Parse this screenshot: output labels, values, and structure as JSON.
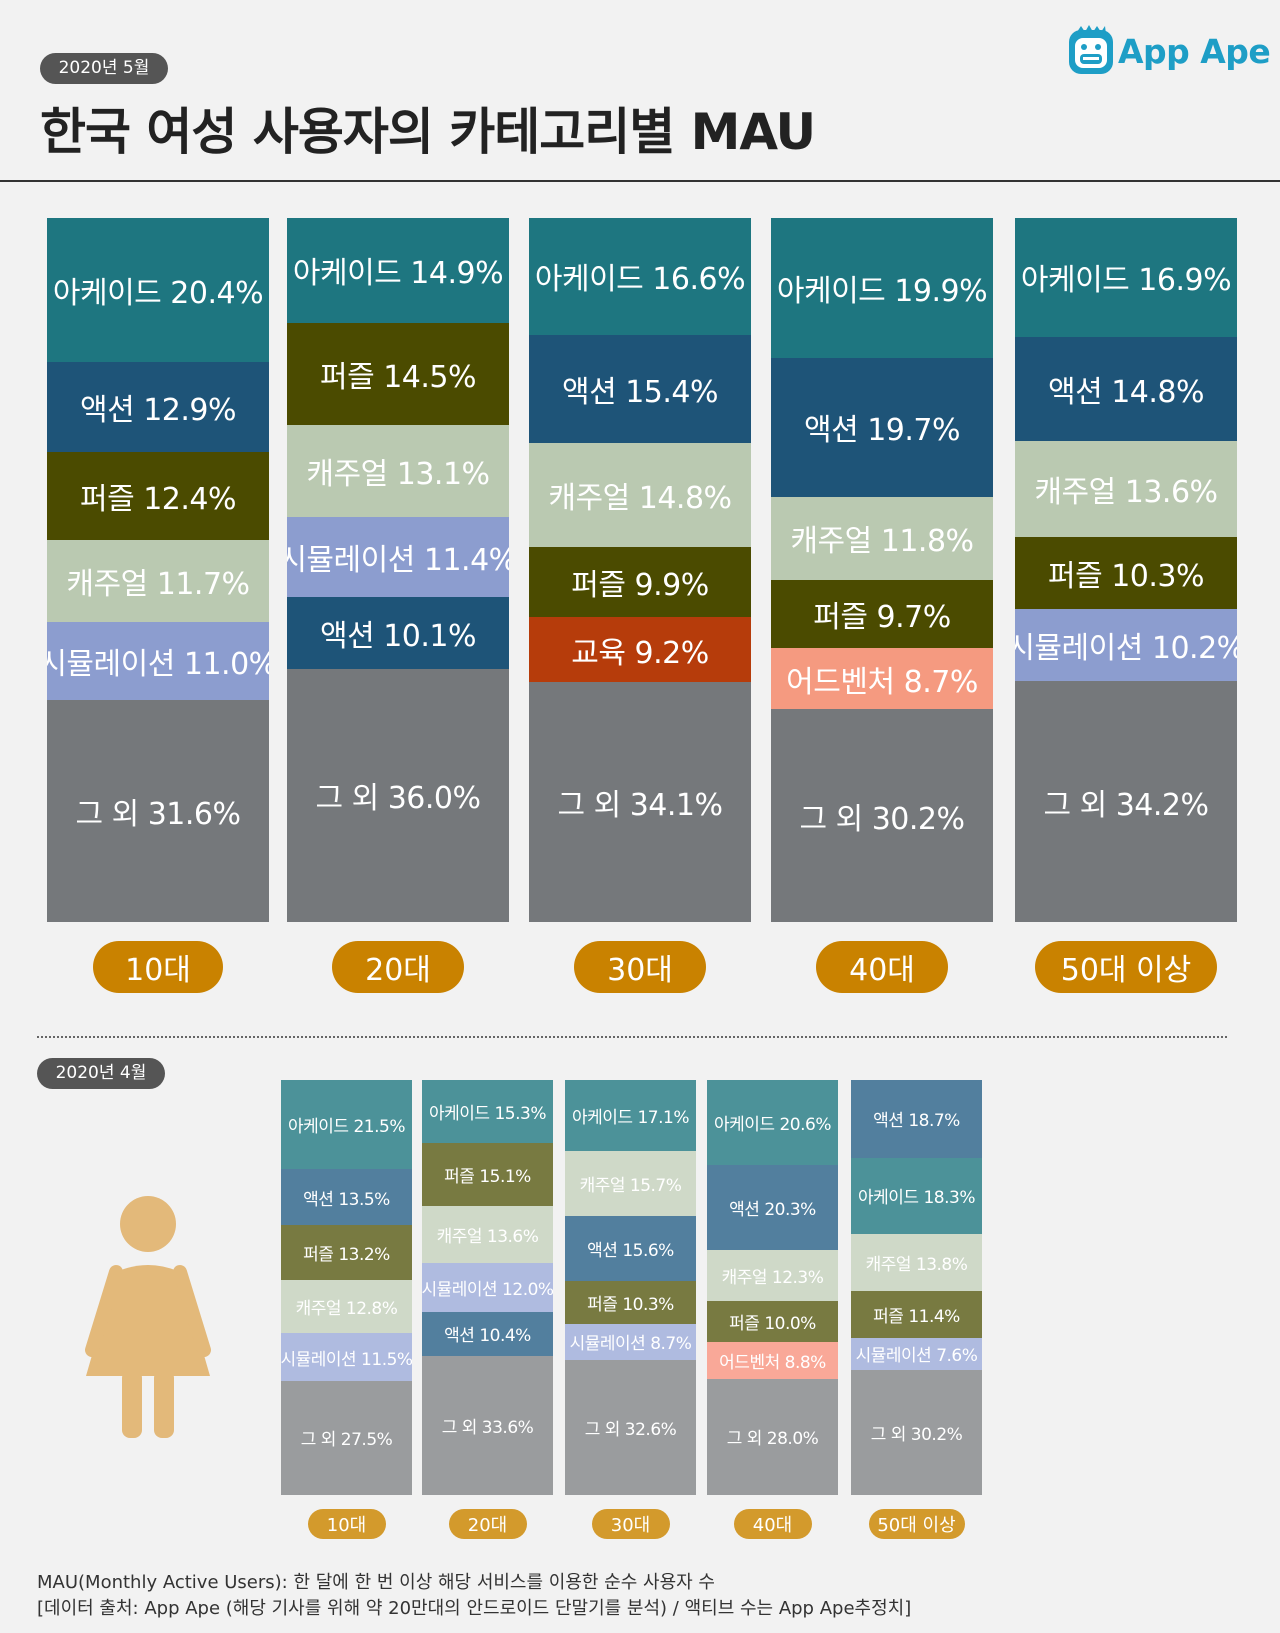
{
  "header": {
    "date_badge": "2020년 5월",
    "title": "한국 여성 사용자의 카테고리별 MAU",
    "logo_text": "App Ape"
  },
  "april": {
    "date_badge": "2020년 4월"
  },
  "colors": {
    "아케이드": "#1e7680",
    "액션": "#1e5478",
    "퍼즐": "#4b4b00",
    "캐주얼": "#bac9b1",
    "시뮬레이션": "#8c9dcf",
    "교육": "#b63c0b",
    "어드벤처": "#f59a80",
    "그 외": "#75787b",
    "age_pill": "#c98200"
  },
  "colors_april": {
    "아케이드": "#4c9299",
    "액션": "#527f9e",
    "퍼즐": "#787a41",
    "캐주얼": "#cfd9c8",
    "시뮬레이션": "#afbbe0",
    "어드벤처": "#f9a898",
    "그 외": "#9a9c9e",
    "age_pill": "#d39a2c"
  },
  "chart_data": [
    {
      "type": "bar",
      "stacked": true,
      "title": "한국 여성 사용자의 카테고리별 MAU",
      "period": "2020년 5월",
      "unit": "%",
      "categories": [
        "10대",
        "20대",
        "30대",
        "40대",
        "50대 이상"
      ],
      "columns": [
        {
          "category": "10대",
          "segments": [
            {
              "name": "아케이드",
              "value": 20.4,
              "label": "아케이드 20.4%"
            },
            {
              "name": "액션",
              "value": 12.9,
              "label": "액션 12.9%"
            },
            {
              "name": "퍼즐",
              "value": 12.4,
              "label": "퍼즐 12.4%"
            },
            {
              "name": "캐주얼",
              "value": 11.7,
              "label": "캐주얼 11.7%"
            },
            {
              "name": "시뮬레이션",
              "value": 11.0,
              "label": "시뮬레이션 11.0%"
            },
            {
              "name": "그 외",
              "value": 31.6,
              "label": "그 외 31.6%"
            }
          ]
        },
        {
          "category": "20대",
          "segments": [
            {
              "name": "아케이드",
              "value": 14.9,
              "label": "아케이드 14.9%"
            },
            {
              "name": "퍼즐",
              "value": 14.5,
              "label": "퍼즐 14.5%"
            },
            {
              "name": "캐주얼",
              "value": 13.1,
              "label": "캐주얼 13.1%"
            },
            {
              "name": "시뮬레이션",
              "value": 11.4,
              "label": "시뮬레이션 11.4%"
            },
            {
              "name": "액션",
              "value": 10.1,
              "label": "액션 10.1%"
            },
            {
              "name": "그 외",
              "value": 36.0,
              "label": "그 외 36.0%"
            }
          ]
        },
        {
          "category": "30대",
          "segments": [
            {
              "name": "아케이드",
              "value": 16.6,
              "label": "아케이드 16.6%"
            },
            {
              "name": "액션",
              "value": 15.4,
              "label": "액션 15.4%"
            },
            {
              "name": "캐주얼",
              "value": 14.8,
              "label": "캐주얼 14.8%"
            },
            {
              "name": "퍼즐",
              "value": 9.9,
              "label": "퍼즐 9.9%"
            },
            {
              "name": "교육",
              "value": 9.2,
              "label": "교육 9.2%"
            },
            {
              "name": "그 외",
              "value": 34.1,
              "label": "그 외 34.1%"
            }
          ]
        },
        {
          "category": "40대",
          "segments": [
            {
              "name": "아케이드",
              "value": 19.9,
              "label": "아케이드 19.9%"
            },
            {
              "name": "액션",
              "value": 19.7,
              "label": "액션 19.7%"
            },
            {
              "name": "캐주얼",
              "value": 11.8,
              "label": "캐주얼 11.8%"
            },
            {
              "name": "퍼즐",
              "value": 9.7,
              "label": "퍼즐 9.7%"
            },
            {
              "name": "어드벤처",
              "value": 8.7,
              "label": "어드벤처 8.7%"
            },
            {
              "name": "그 외",
              "value": 30.2,
              "label": "그 외 30.2%"
            }
          ]
        },
        {
          "category": "50대 이상",
          "segments": [
            {
              "name": "아케이드",
              "value": 16.9,
              "label": "아케이드 16.9%"
            },
            {
              "name": "액션",
              "value": 14.8,
              "label": "액션 14.8%"
            },
            {
              "name": "캐주얼",
              "value": 13.6,
              "label": "캐주얼 13.6%"
            },
            {
              "name": "퍼즐",
              "value": 10.3,
              "label": "퍼즐 10.3%"
            },
            {
              "name": "시뮬레이션",
              "value": 10.2,
              "label": "시뮬레이션 10.2%"
            },
            {
              "name": "그 외",
              "value": 34.2,
              "label": "그 외 34.2%"
            }
          ]
        }
      ]
    },
    {
      "type": "bar",
      "stacked": true,
      "period": "2020년 4월",
      "unit": "%",
      "categories": [
        "10대",
        "20대",
        "30대",
        "40대",
        "50대 이상"
      ],
      "columns": [
        {
          "category": "10대",
          "segments": [
            {
              "name": "아케이드",
              "value": 21.5,
              "label": "아케이드 21.5%"
            },
            {
              "name": "액션",
              "value": 13.5,
              "label": "액션 13.5%"
            },
            {
              "name": "퍼즐",
              "value": 13.2,
              "label": "퍼즐 13.2%"
            },
            {
              "name": "캐주얼",
              "value": 12.8,
              "label": "캐주얼 12.8%"
            },
            {
              "name": "시뮬레이션",
              "value": 11.5,
              "label": "시뮬레이션 11.5%"
            },
            {
              "name": "그 외",
              "value": 27.5,
              "label": "그 외 27.5%"
            }
          ]
        },
        {
          "category": "20대",
          "segments": [
            {
              "name": "아케이드",
              "value": 15.3,
              "label": "아케이드 15.3%"
            },
            {
              "name": "퍼즐",
              "value": 15.1,
              "label": "퍼즐 15.1%"
            },
            {
              "name": "캐주얼",
              "value": 13.6,
              "label": "캐주얼 13.6%"
            },
            {
              "name": "시뮬레이션",
              "value": 12.0,
              "label": "시뮬레이션 12.0%"
            },
            {
              "name": "액션",
              "value": 10.4,
              "label": "액션 10.4%"
            },
            {
              "name": "그 외",
              "value": 33.6,
              "label": "그 외 33.6%"
            }
          ]
        },
        {
          "category": "30대",
          "segments": [
            {
              "name": "아케이드",
              "value": 17.1,
              "label": "아케이드 17.1%"
            },
            {
              "name": "캐주얼",
              "value": 15.7,
              "label": "캐주얼 15.7%"
            },
            {
              "name": "액션",
              "value": 15.6,
              "label": "액션 15.6%"
            },
            {
              "name": "퍼즐",
              "value": 10.3,
              "label": "퍼즐 10.3%"
            },
            {
              "name": "시뮬레이션",
              "value": 8.7,
              "label": "시뮬레이션 8.7%"
            },
            {
              "name": "그 외",
              "value": 32.6,
              "label": "그 외 32.6%"
            }
          ]
        },
        {
          "category": "40대",
          "segments": [
            {
              "name": "아케이드",
              "value": 20.6,
              "label": "아케이드 20.6%"
            },
            {
              "name": "액션",
              "value": 20.3,
              "label": "액션 20.3%"
            },
            {
              "name": "캐주얼",
              "value": 12.3,
              "label": "캐주얼 12.3%"
            },
            {
              "name": "퍼즐",
              "value": 10.0,
              "label": "퍼즐 10.0%"
            },
            {
              "name": "어드벤처",
              "value": 8.8,
              "label": "어드벤처 8.8%"
            },
            {
              "name": "그 외",
              "value": 28.0,
              "label": "그 외 28.0%"
            }
          ]
        },
        {
          "category": "50대 이상",
          "segments": [
            {
              "name": "액션",
              "value": 18.7,
              "label": "액션 18.7%"
            },
            {
              "name": "아케이드",
              "value": 18.3,
              "label": "아케이드 18.3%"
            },
            {
              "name": "캐주얼",
              "value": 13.8,
              "label": "캐주얼 13.8%"
            },
            {
              "name": "퍼즐",
              "value": 11.4,
              "label": "퍼즐 11.4%"
            },
            {
              "name": "시뮬레이션",
              "value": 7.6,
              "label": "시뮬레이션 7.6%"
            },
            {
              "name": "그 외",
              "value": 30.2,
              "label": "그 외 30.2%"
            }
          ]
        }
      ]
    }
  ],
  "footnote": {
    "line1": "MAU(Monthly Active Users):  한 달에 한 번 이상 해당 서비스를 이용한 순수 사용자 수",
    "line2": "[데이터 출처: App Ape (해당 기사를 위해 약 20만대의 안드로이드 단말기를 분석) / 액티브 수는 App Ape추정치]"
  }
}
